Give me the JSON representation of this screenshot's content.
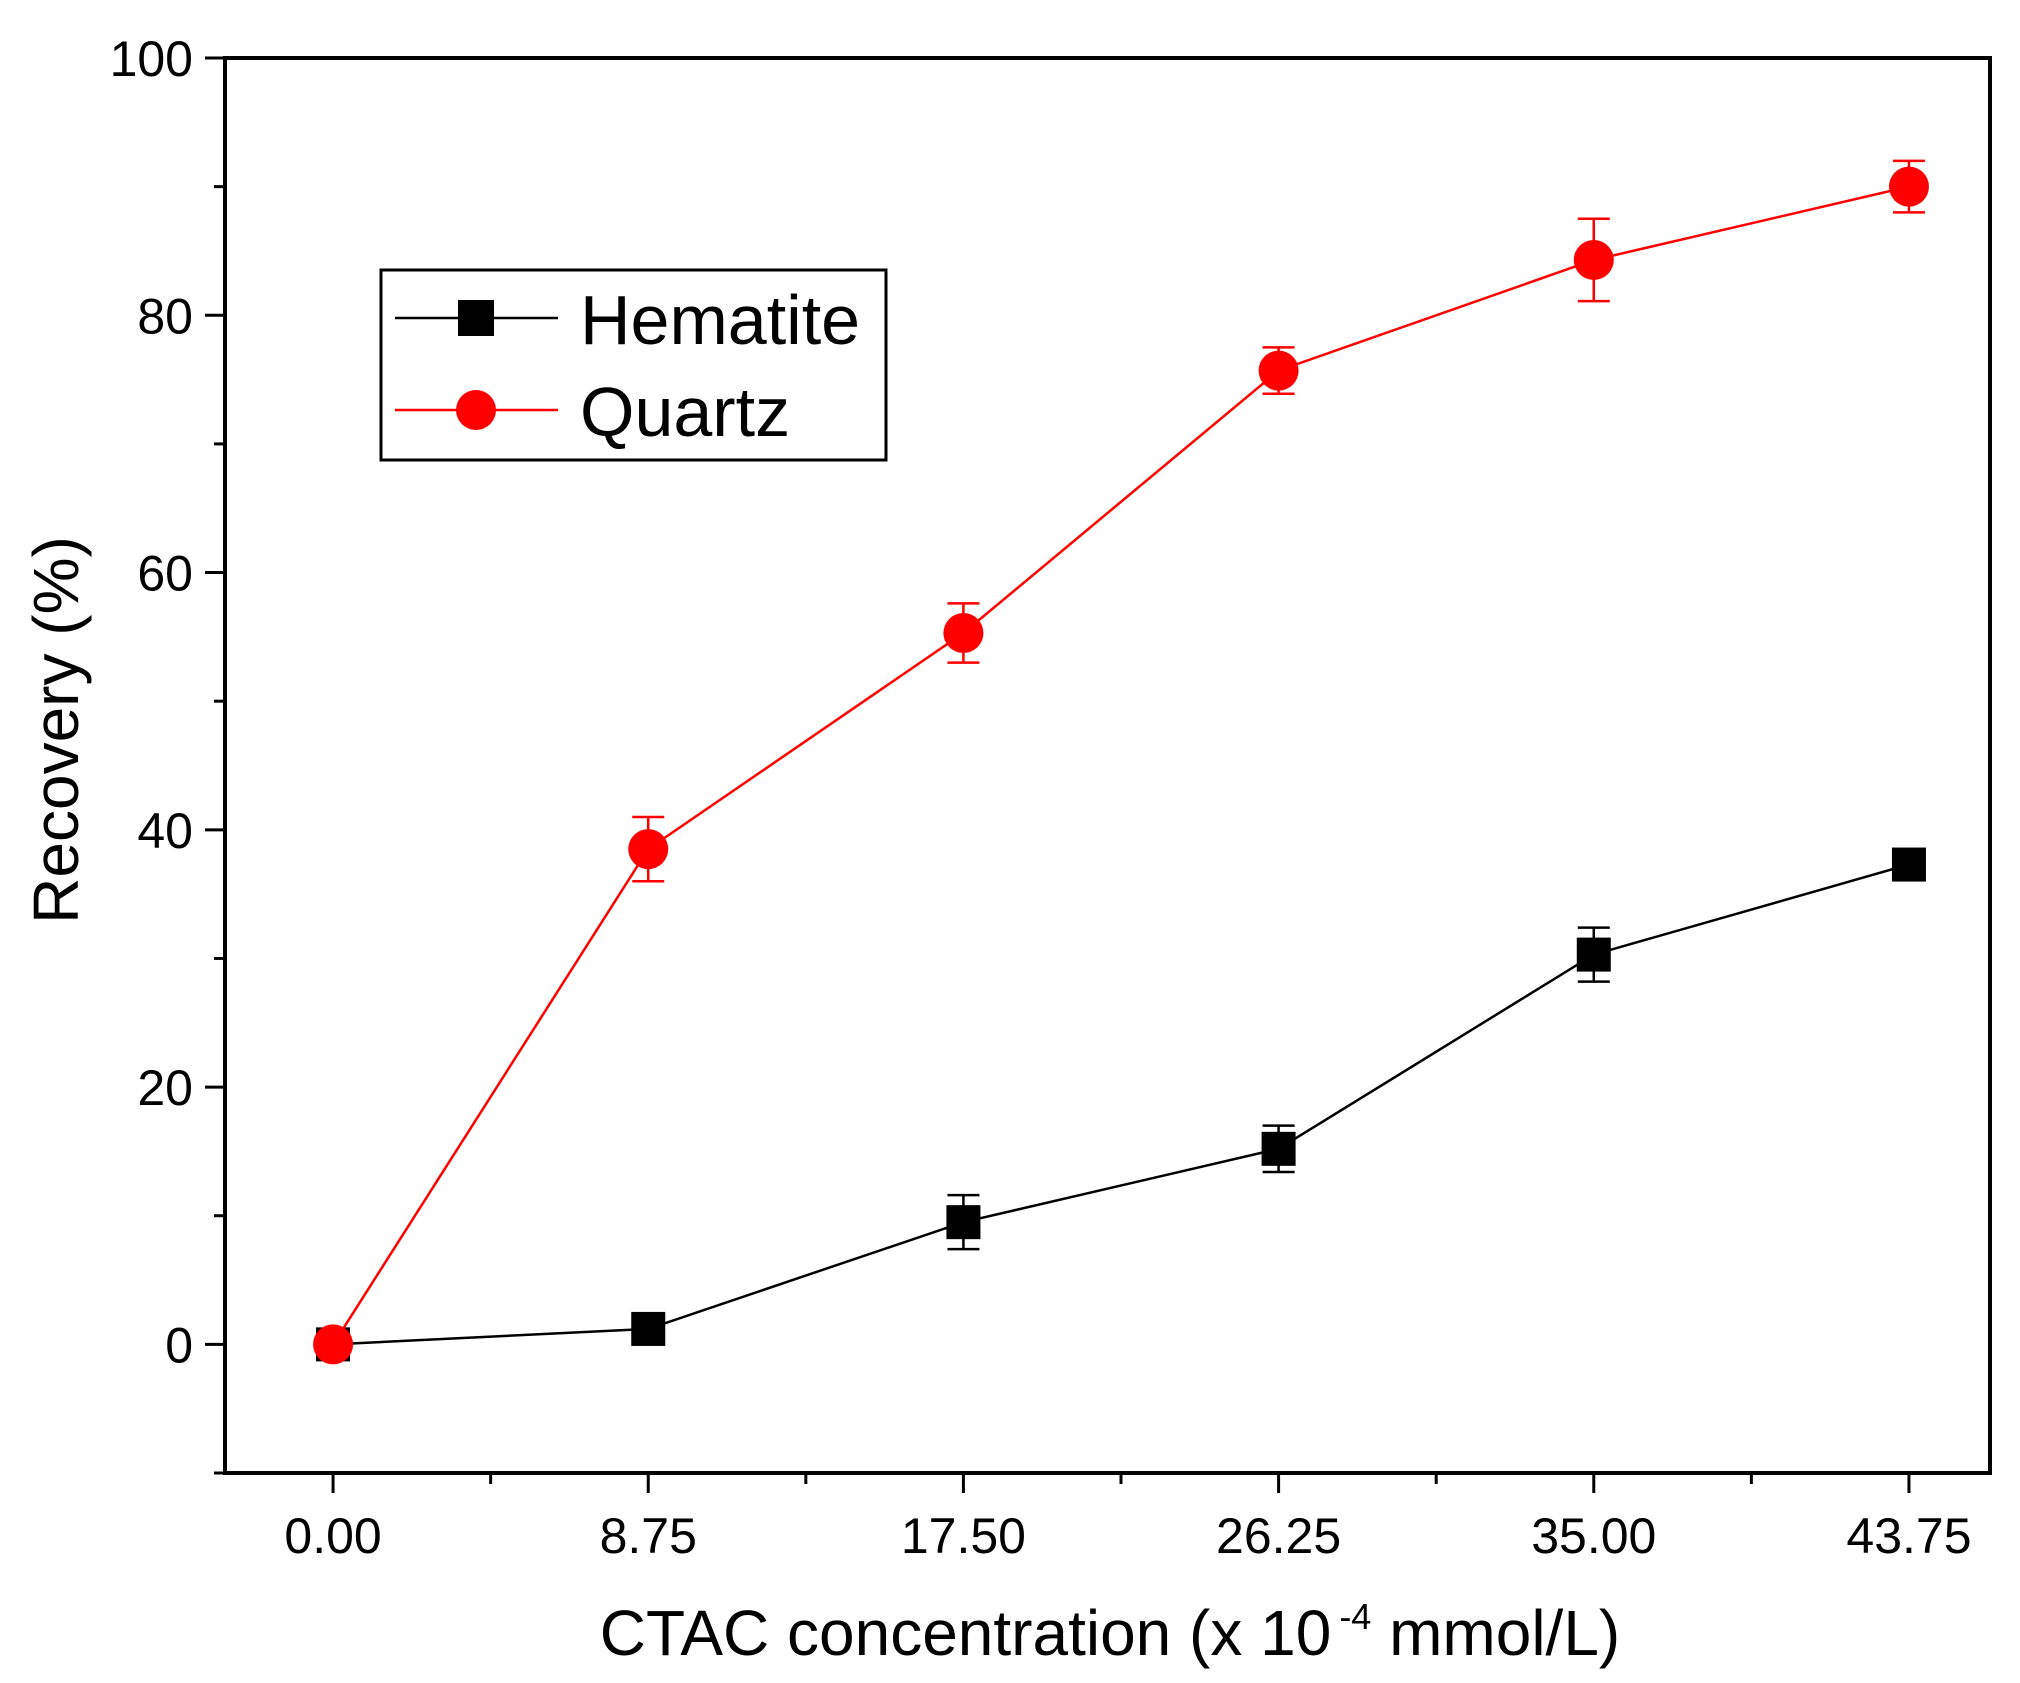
{
  "chart_data": {
    "type": "line",
    "xlabel_prefix": "CTAC concentration (x 10",
    "xlabel_exponent": "-4",
    "xlabel_suffix": " mmol/L)",
    "ylabel": "Recovery (%)",
    "x": [
      0.0,
      8.75,
      17.5,
      26.25,
      35.0,
      43.75
    ],
    "x_tick_labels": [
      "0.00",
      "8.75",
      "17.50",
      "26.25",
      "35.00",
      "43.75"
    ],
    "xlim": [
      -3,
      46
    ],
    "ylim": [
      -10,
      100
    ],
    "y_ticks": [
      0,
      20,
      40,
      60,
      80,
      100
    ],
    "y_tick_labels": [
      "0",
      "20",
      "40",
      "60",
      "80",
      "100"
    ],
    "legend_position": "upper-left",
    "series": [
      {
        "name": "Hematite",
        "color": "#000000",
        "marker": "square",
        "values": [
          0,
          1.2,
          9.5,
          15.2,
          30.3,
          37.3
        ],
        "errors": [
          0.5,
          0.6,
          2.1,
          1.8,
          2.1,
          1.0
        ]
      },
      {
        "name": "Quartz",
        "color": "#ff0000",
        "marker": "circle",
        "values": [
          0,
          38.5,
          55.3,
          75.7,
          84.3,
          90.0
        ],
        "errors": [
          0.5,
          2.5,
          2.3,
          1.8,
          3.2,
          2.0
        ]
      }
    ]
  }
}
